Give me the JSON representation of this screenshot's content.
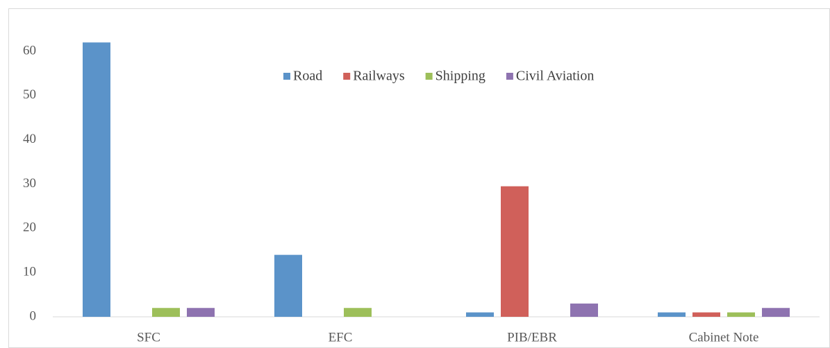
{
  "chart_data": {
    "type": "bar",
    "categories": [
      "SFC",
      "EFC",
      "PIB/EBR",
      "Cabinet Note"
    ],
    "series": [
      {
        "name": "Road",
        "color": "#5b93c9",
        "values": [
          62,
          14,
          1,
          1
        ]
      },
      {
        "name": "Railways",
        "color": "#d0605a",
        "values": [
          0,
          0,
          29.5,
          1
        ]
      },
      {
        "name": "Shipping",
        "color": "#9dbf5a",
        "values": [
          2,
          2,
          0,
          1
        ]
      },
      {
        "name": "Civil Aviation",
        "color": "#8e73b0",
        "values": [
          2,
          0,
          3,
          2
        ]
      }
    ],
    "ylim": [
      0,
      60
    ],
    "yticks": [
      0,
      10,
      20,
      30,
      40,
      50,
      60
    ],
    "grid": false,
    "legend": "top"
  }
}
